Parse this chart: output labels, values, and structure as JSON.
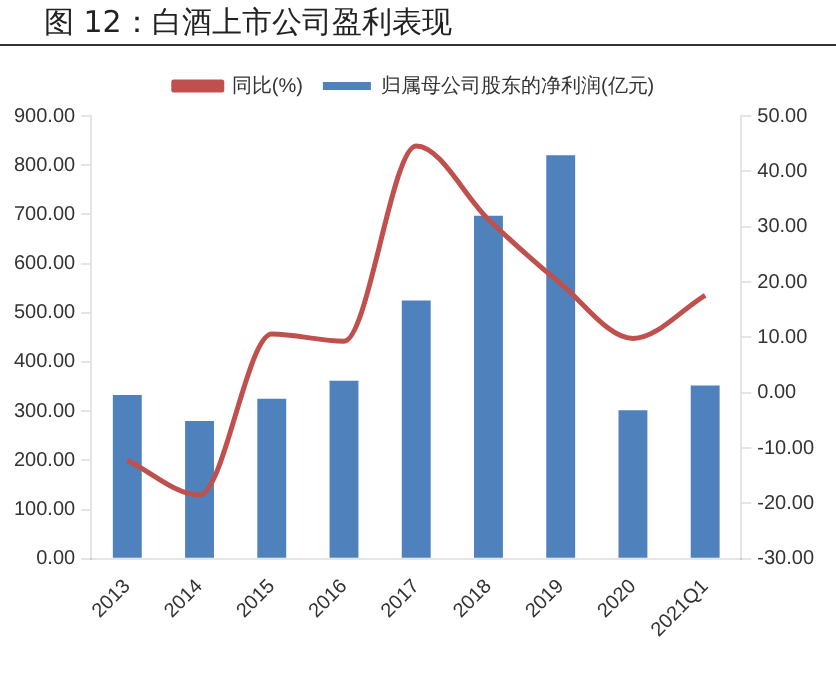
{
  "chart_data": {
    "type": "bar",
    "title": "图 12：白酒上市公司盈利表现",
    "categories": [
      "2013",
      "2014",
      "2015",
      "2016",
      "2017",
      "2018",
      "2019",
      "2020",
      "2021Q1"
    ],
    "series": [
      {
        "name": "归属母公司股东的净利润(亿元)",
        "color": "#4f81bd",
        "values": [
          333,
          280,
          325,
          362,
          525,
          697,
          820,
          302,
          352
        ]
      },
      {
        "name": "同比(%)",
        "type": "line",
        "axis": "y2",
        "color": "#c0504d",
        "values": [
          -12.2,
          -18.5,
          10.6,
          9.3,
          44.6,
          31.3,
          19.7,
          9.8,
          17.6
        ]
      }
    ],
    "ylim": [
      0,
      900
    ],
    "yticks": [
      {
        "value": 0,
        "label": "0.00"
      },
      {
        "value": 100,
        "label": "100.00"
      },
      {
        "value": 200,
        "label": "200.00"
      },
      {
        "value": 300,
        "label": "300.00"
      },
      {
        "value": 400,
        "label": "400.00"
      },
      {
        "value": 500,
        "label": "500.00"
      },
      {
        "value": 600,
        "label": "600.00"
      },
      {
        "value": 700,
        "label": "700.00"
      },
      {
        "value": 800,
        "label": "800.00"
      },
      {
        "value": 900,
        "label": "900.00"
      }
    ],
    "y2lim": [
      -30,
      50
    ],
    "y2ticks": [
      {
        "value": -30,
        "label": "-30.00"
      },
      {
        "value": -20,
        "label": "-20.00"
      },
      {
        "value": -10,
        "label": "-10.00"
      },
      {
        "value": 0,
        "label": "0.00"
      },
      {
        "value": 10,
        "label": "10.00"
      },
      {
        "value": 20,
        "label": "20.00"
      },
      {
        "value": 30,
        "label": "30.00"
      },
      {
        "value": 40,
        "label": "40.00"
      },
      {
        "value": 50,
        "label": "50.00"
      }
    ],
    "grid": false,
    "legend": "top",
    "marker": "none",
    "line_style": "solid"
  }
}
